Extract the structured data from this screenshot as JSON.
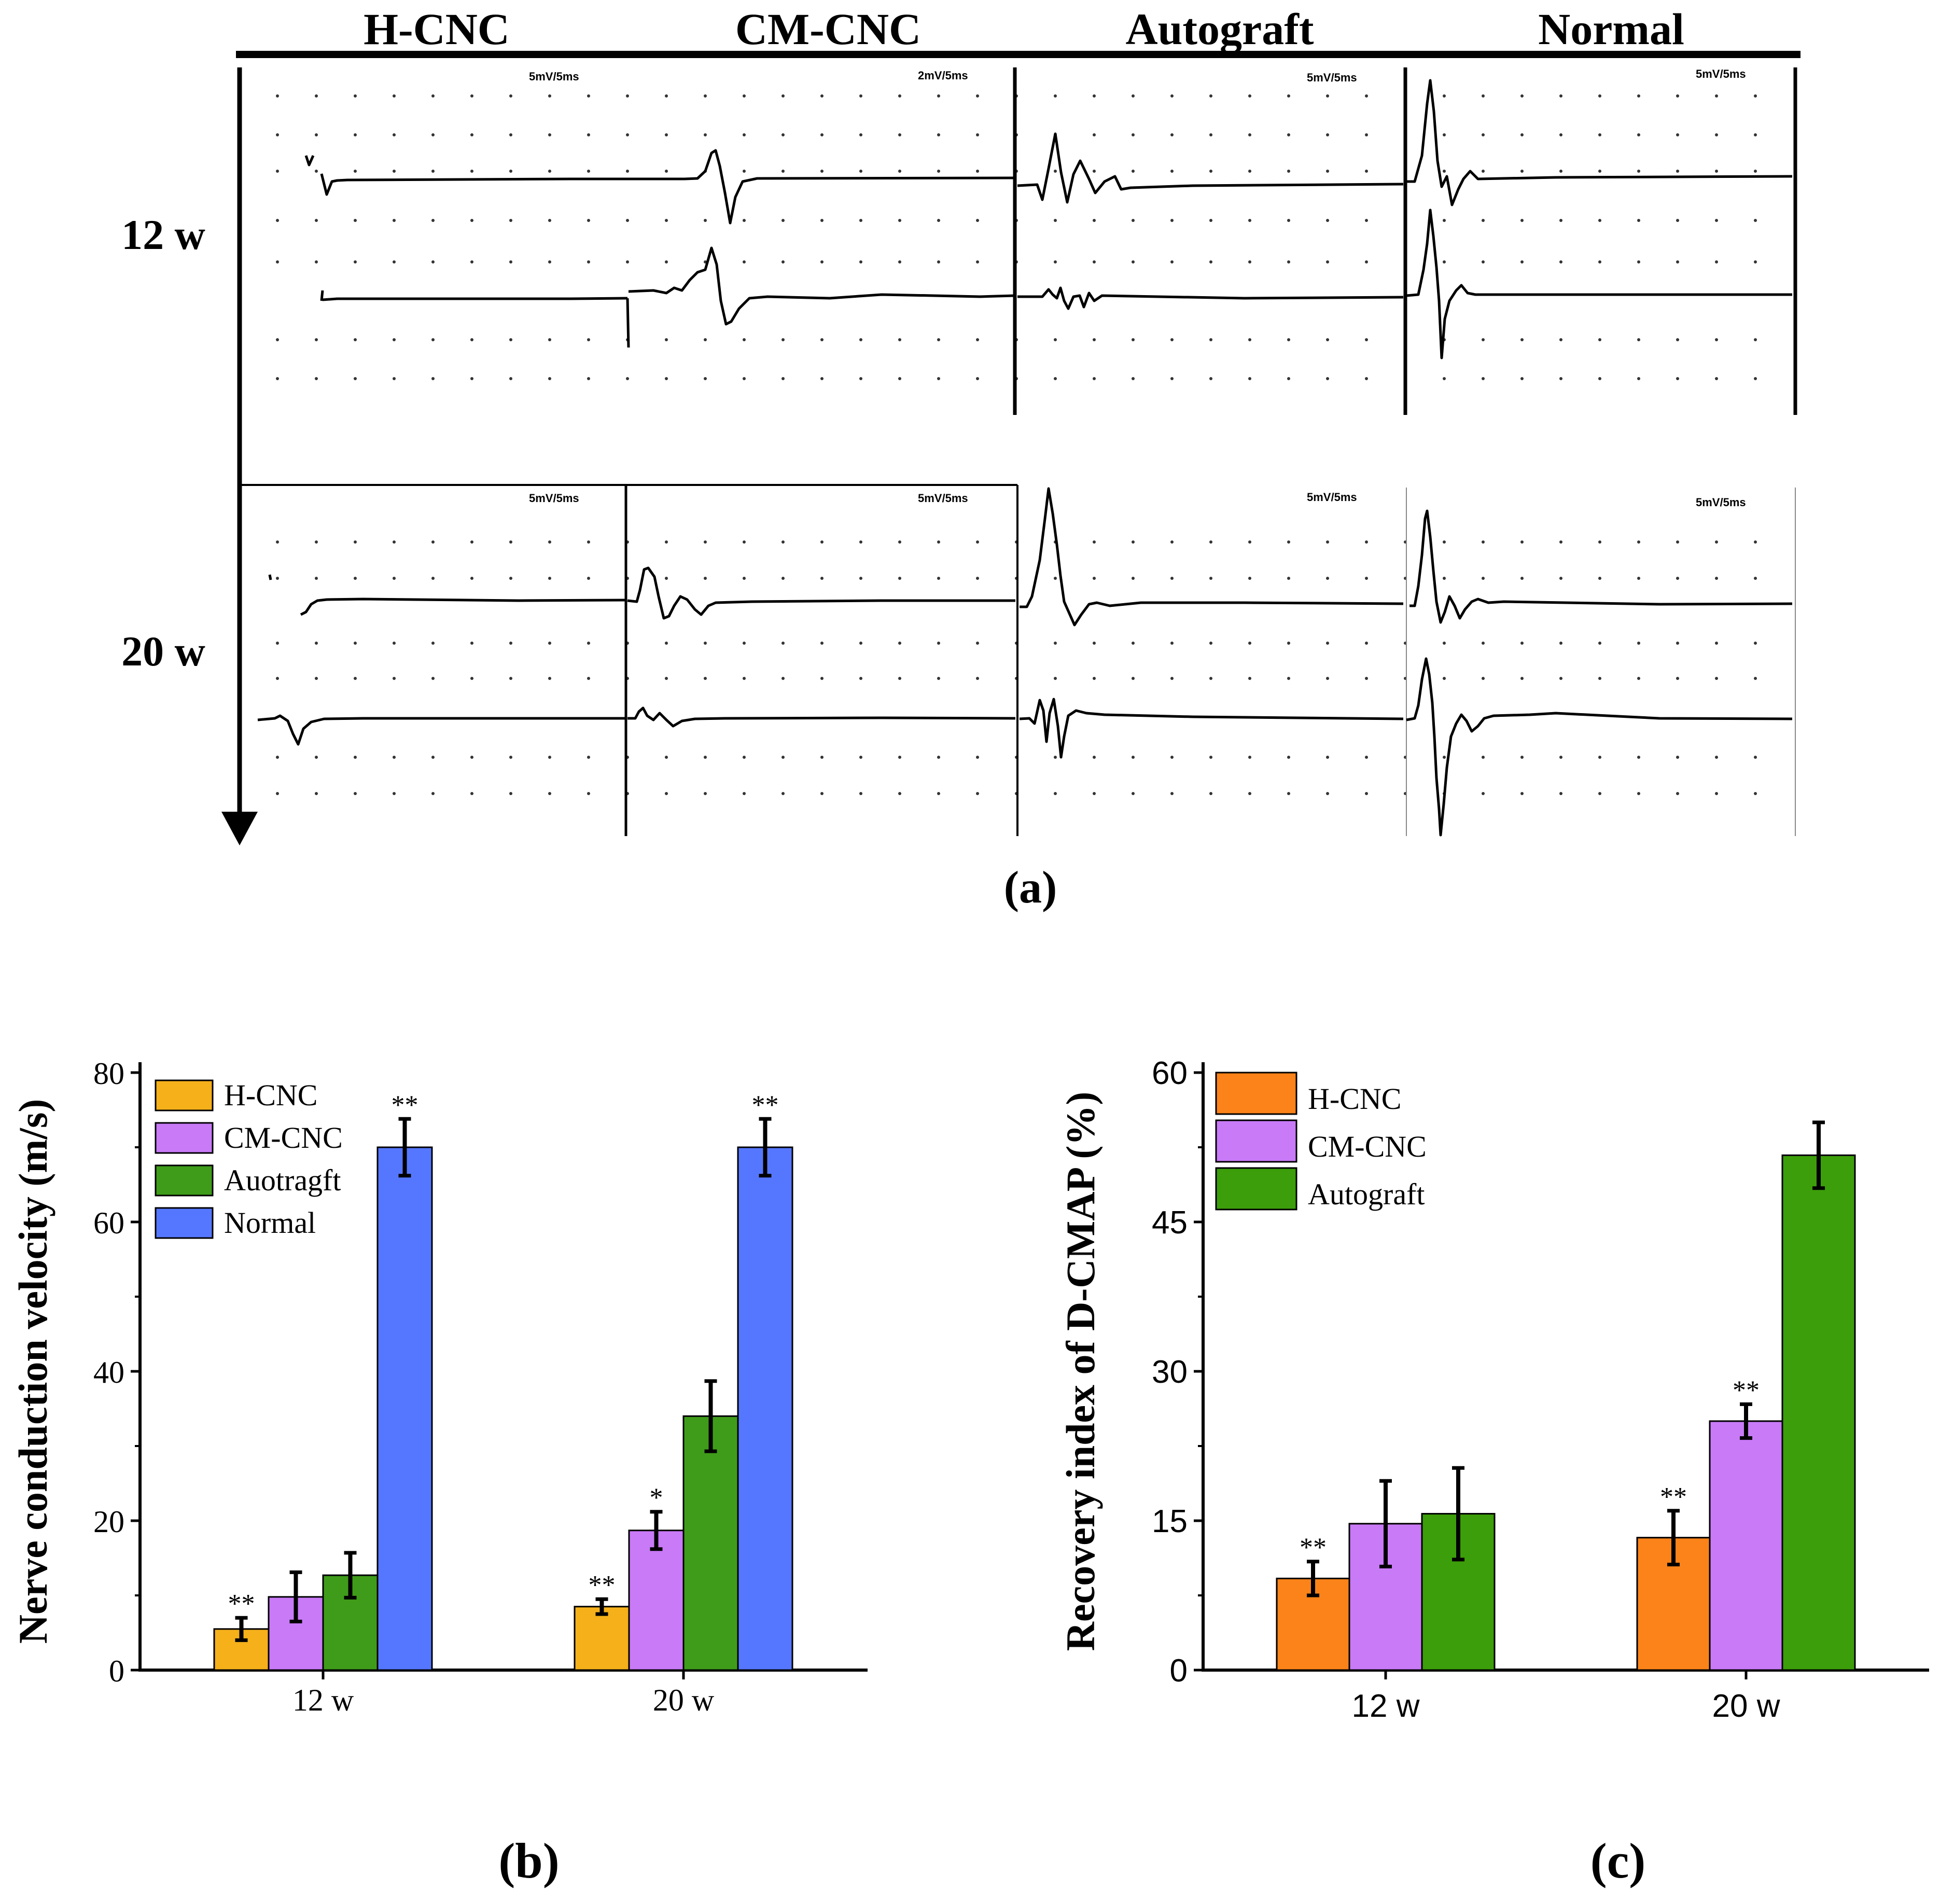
{
  "panel_a": {
    "columns": [
      "H-CNC",
      "CM-CNC",
      "Autograft",
      "Normal"
    ],
    "rows": [
      "12 w",
      "20 w"
    ],
    "scale_labels": [
      [
        "5mV/5ms",
        "2mV/5ms",
        "5mV/5ms",
        "5mV/5ms"
      ],
      [
        "5mV/5ms",
        "5mV/5ms",
        "5mV/5ms",
        "5mV/5ms"
      ]
    ],
    "caption": "(a)"
  },
  "panel_b": {
    "caption": "(b)"
  },
  "panel_c": {
    "caption": "(c)"
  },
  "colors": {
    "b": [
      "#f5b01a",
      "#c87af7",
      "#3f9c1a",
      "#5577ff"
    ],
    "c": [
      "#fb8319",
      "#c87af7",
      "#3c9e0a"
    ]
  },
  "chart_data": [
    {
      "id": "b",
      "type": "bar",
      "categories": [
        "12 w",
        "20 w"
      ],
      "series": [
        {
          "name": "H-CNC",
          "values": [
            5.5,
            8.5
          ],
          "errors": [
            1.5,
            1.0
          ],
          "sig": [
            "**",
            "**"
          ]
        },
        {
          "name": "CM-CNC",
          "values": [
            9.8,
            18.7
          ],
          "errors": [
            3.3,
            2.5
          ],
          "sig": [
            "",
            "*"
          ]
        },
        {
          "name": "Auotragft",
          "values": [
            12.7,
            34.0
          ],
          "errors": [
            3.0,
            4.7
          ],
          "sig": [
            "",
            ""
          ]
        },
        {
          "name": "Normal",
          "values": [
            70.0,
            70.0
          ],
          "errors": [
            3.8,
            3.8
          ],
          "sig": [
            "**",
            "**"
          ]
        }
      ],
      "ylabel": "Nerve conduction velocity (m/s)",
      "xlabel": "",
      "ylim": [
        0,
        80
      ],
      "yticks": [
        0,
        20,
        40,
        60,
        80
      ],
      "legend": "top-left"
    },
    {
      "id": "c",
      "type": "bar",
      "categories": [
        "12 w",
        "20 w"
      ],
      "series": [
        {
          "name": "H-CNC",
          "values": [
            9.2,
            13.3
          ],
          "errors": [
            1.7,
            2.7
          ],
          "sig": [
            "**",
            "**"
          ]
        },
        {
          "name": "CM-CNC",
          "values": [
            14.7,
            25.0
          ],
          "errors": [
            4.3,
            1.7
          ],
          "sig": [
            "",
            "**"
          ]
        },
        {
          "name": "Autograft",
          "values": [
            15.7,
            51.7
          ],
          "errors": [
            4.6,
            3.3
          ],
          "sig": [
            "",
            ""
          ]
        }
      ],
      "ylabel": "Recovery index of D-CMAP (%)",
      "xlabel": "",
      "ylim": [
        0,
        60
      ],
      "yticks": [
        0,
        15,
        30,
        45,
        60
      ],
      "legend": "top-left"
    }
  ]
}
